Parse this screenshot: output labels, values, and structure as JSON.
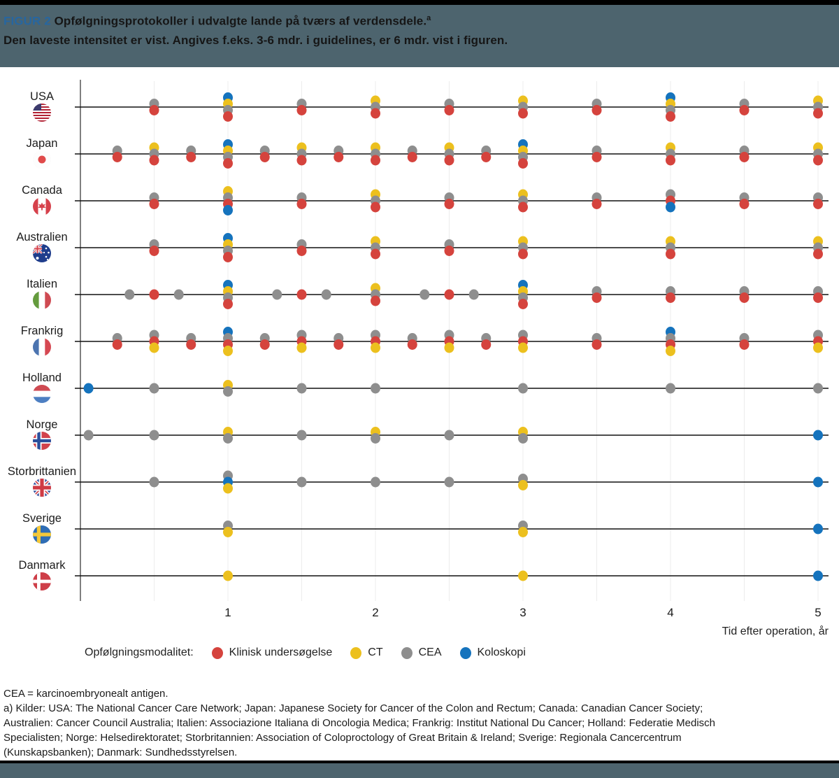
{
  "header": {
    "tag": "FIGUR 2",
    "title": "Opfølgningsprotokoller i udvalgte lande på tværs af verdensdele.",
    "title_sup": "a",
    "subtitle": "Den laveste intensitet er vist. Angives f.eks. 3-6 mdr. i guidelines, er 6 mdr. vist i figuren."
  },
  "colors": {
    "header_bg": "#4d646e",
    "tag_blue": "#2766a0",
    "klinisk": "#d5433d",
    "ct": "#ecc01e",
    "cea": "#8e8e8e",
    "koloskopi": "#1573bd",
    "row_line": "#101010",
    "grid_line": "#ececec"
  },
  "chart_data": {
    "type": "scatter",
    "xlabel": "Tid efter operation, år",
    "x_ticks": [
      1,
      2,
      3,
      4,
      5
    ],
    "x_range": [
      0,
      5.1
    ],
    "grid": "vertical, every 0.5 year",
    "legend_position": "bottom",
    "legend_title": "Opfølgningsmodalitet:",
    "legend": [
      {
        "label": "Klinisk undersøgelse",
        "color_key": "klinisk"
      },
      {
        "label": "CT",
        "color_key": "ct"
      },
      {
        "label": "CEA",
        "color_key": "cea"
      },
      {
        "label": "Koloskopi",
        "color_key": "koloskopi"
      }
    ],
    "rows": [
      {
        "country": "USA",
        "flag_icon": "usa-flag-icon",
        "points": [
          {
            "x": 0.5,
            "stack": [
              "cea",
              "klinisk"
            ]
          },
          {
            "x": 1,
            "stack": [
              "koloskopi",
              "ct",
              "cea",
              "klinisk"
            ]
          },
          {
            "x": 1.5,
            "stack": [
              "cea",
              "klinisk"
            ]
          },
          {
            "x": 2,
            "stack": [
              "ct",
              "cea",
              "klinisk"
            ]
          },
          {
            "x": 2.5,
            "stack": [
              "cea",
              "klinisk"
            ]
          },
          {
            "x": 3,
            "stack": [
              "ct",
              "cea",
              "klinisk"
            ]
          },
          {
            "x": 3.5,
            "stack": [
              "cea",
              "klinisk"
            ]
          },
          {
            "x": 4,
            "stack": [
              "koloskopi",
              "ct",
              "cea",
              "klinisk"
            ]
          },
          {
            "x": 4.5,
            "stack": [
              "cea",
              "klinisk"
            ]
          },
          {
            "x": 5,
            "stack": [
              "ct",
              "cea",
              "klinisk"
            ]
          }
        ]
      },
      {
        "country": "Japan",
        "flag_icon": "japan-flag-icon",
        "points": [
          {
            "x": 0.25,
            "stack": [
              "cea",
              "klinisk"
            ]
          },
          {
            "x": 0.5,
            "stack": [
              "ct",
              "cea",
              "klinisk"
            ]
          },
          {
            "x": 0.75,
            "stack": [
              "cea",
              "klinisk"
            ]
          },
          {
            "x": 1,
            "stack": [
              "koloskopi",
              "ct",
              "cea",
              "klinisk"
            ]
          },
          {
            "x": 1.25,
            "stack": [
              "cea",
              "klinisk"
            ]
          },
          {
            "x": 1.5,
            "stack": [
              "ct",
              "cea",
              "klinisk"
            ]
          },
          {
            "x": 1.75,
            "stack": [
              "cea",
              "klinisk"
            ]
          },
          {
            "x": 2,
            "stack": [
              "ct",
              "cea",
              "klinisk"
            ]
          },
          {
            "x": 2.25,
            "stack": [
              "cea",
              "klinisk"
            ]
          },
          {
            "x": 2.5,
            "stack": [
              "ct",
              "cea",
              "klinisk"
            ]
          },
          {
            "x": 2.75,
            "stack": [
              "cea",
              "klinisk"
            ]
          },
          {
            "x": 3,
            "stack": [
              "koloskopi",
              "ct",
              "cea",
              "klinisk"
            ]
          },
          {
            "x": 3.5,
            "stack": [
              "cea",
              "klinisk"
            ]
          },
          {
            "x": 4,
            "stack": [
              "ct",
              "cea",
              "klinisk"
            ]
          },
          {
            "x": 4.5,
            "stack": [
              "cea",
              "klinisk"
            ]
          },
          {
            "x": 5,
            "stack": [
              "ct",
              "cea",
              "klinisk"
            ]
          }
        ]
      },
      {
        "country": "Canada",
        "flag_icon": "canada-flag-icon",
        "points": [
          {
            "x": 0.5,
            "stack": [
              "cea",
              "klinisk"
            ]
          },
          {
            "x": 1,
            "stack": [
              "ct",
              "cea",
              "klinisk",
              "koloskopi"
            ]
          },
          {
            "x": 1.5,
            "stack": [
              "cea",
              "klinisk"
            ]
          },
          {
            "x": 2,
            "stack": [
              "ct",
              "cea",
              "klinisk"
            ]
          },
          {
            "x": 2.5,
            "stack": [
              "cea",
              "klinisk"
            ]
          },
          {
            "x": 3,
            "stack": [
              "ct",
              "cea",
              "klinisk"
            ]
          },
          {
            "x": 3.5,
            "stack": [
              "cea",
              "klinisk"
            ]
          },
          {
            "x": 4,
            "stack": [
              "cea",
              "klinisk",
              "koloskopi"
            ]
          },
          {
            "x": 4.5,
            "stack": [
              "cea",
              "klinisk"
            ]
          },
          {
            "x": 5,
            "stack": [
              "cea",
              "klinisk"
            ]
          }
        ]
      },
      {
        "country": "Australien",
        "flag_icon": "australia-flag-icon",
        "points": [
          {
            "x": 0.5,
            "stack": [
              "cea",
              "klinisk"
            ]
          },
          {
            "x": 1,
            "stack": [
              "koloskopi",
              "ct",
              "cea",
              "klinisk"
            ]
          },
          {
            "x": 1.5,
            "stack": [
              "cea",
              "klinisk"
            ]
          },
          {
            "x": 2,
            "stack": [
              "ct",
              "cea",
              "klinisk"
            ]
          },
          {
            "x": 2.5,
            "stack": [
              "cea",
              "klinisk"
            ]
          },
          {
            "x": 3,
            "stack": [
              "ct",
              "cea",
              "klinisk"
            ]
          },
          {
            "x": 4,
            "stack": [
              "ct",
              "cea",
              "klinisk"
            ]
          },
          {
            "x": 5,
            "stack": [
              "ct",
              "cea",
              "klinisk"
            ]
          }
        ]
      },
      {
        "country": "Italien",
        "flag_icon": "italy-flag-icon",
        "points": [
          {
            "x": 0.333,
            "stack": [
              "cea"
            ]
          },
          {
            "x": 0.5,
            "stack": [
              "klinisk"
            ]
          },
          {
            "x": 0.667,
            "stack": [
              "cea"
            ]
          },
          {
            "x": 1,
            "stack": [
              "koloskopi",
              "ct",
              "cea",
              "klinisk"
            ]
          },
          {
            "x": 1.333,
            "stack": [
              "cea"
            ]
          },
          {
            "x": 1.5,
            "stack": [
              "klinisk"
            ]
          },
          {
            "x": 1.667,
            "stack": [
              "cea"
            ]
          },
          {
            "x": 2,
            "stack": [
              "ct",
              "cea",
              "klinisk"
            ]
          },
          {
            "x": 2.333,
            "stack": [
              "cea"
            ]
          },
          {
            "x": 2.5,
            "stack": [
              "klinisk"
            ]
          },
          {
            "x": 2.667,
            "stack": [
              "cea"
            ]
          },
          {
            "x": 3,
            "stack": [
              "koloskopi",
              "ct",
              "cea",
              "klinisk"
            ]
          },
          {
            "x": 3.5,
            "stack": [
              "cea",
              "klinisk"
            ]
          },
          {
            "x": 4,
            "stack": [
              "cea",
              "klinisk"
            ]
          },
          {
            "x": 4.5,
            "stack": [
              "cea",
              "klinisk"
            ]
          },
          {
            "x": 5,
            "stack": [
              "cea",
              "klinisk"
            ]
          }
        ]
      },
      {
        "country": "Frankrig",
        "flag_icon": "france-flag-icon",
        "points": [
          {
            "x": 0.25,
            "stack": [
              "cea",
              "klinisk"
            ]
          },
          {
            "x": 0.5,
            "stack": [
              "cea",
              "klinisk",
              "ct"
            ]
          },
          {
            "x": 0.75,
            "stack": [
              "cea",
              "klinisk"
            ]
          },
          {
            "x": 1,
            "stack": [
              "koloskopi",
              "cea",
              "klinisk",
              "ct"
            ]
          },
          {
            "x": 1.25,
            "stack": [
              "cea",
              "klinisk"
            ]
          },
          {
            "x": 1.5,
            "stack": [
              "cea",
              "klinisk",
              "ct"
            ]
          },
          {
            "x": 1.75,
            "stack": [
              "cea",
              "klinisk"
            ]
          },
          {
            "x": 2,
            "stack": [
              "cea",
              "klinisk",
              "ct"
            ]
          },
          {
            "x": 2.25,
            "stack": [
              "cea",
              "klinisk"
            ]
          },
          {
            "x": 2.5,
            "stack": [
              "cea",
              "klinisk",
              "ct"
            ]
          },
          {
            "x": 2.75,
            "stack": [
              "cea",
              "klinisk"
            ]
          },
          {
            "x": 3,
            "stack": [
              "cea",
              "klinisk",
              "ct"
            ]
          },
          {
            "x": 3.5,
            "stack": [
              "cea",
              "klinisk"
            ]
          },
          {
            "x": 4,
            "stack": [
              "koloskopi",
              "cea",
              "klinisk",
              "ct"
            ]
          },
          {
            "x": 4.5,
            "stack": [
              "cea",
              "klinisk"
            ]
          },
          {
            "x": 5,
            "stack": [
              "cea",
              "klinisk",
              "ct"
            ]
          }
        ]
      },
      {
        "country": "Holland",
        "flag_icon": "netherlands-flag-icon",
        "points": [
          {
            "x": 0.055,
            "stack": [
              "koloskopi"
            ]
          },
          {
            "x": 0.5,
            "stack": [
              "cea"
            ]
          },
          {
            "x": 1,
            "stack": [
              "ct",
              "cea"
            ]
          },
          {
            "x": 1.5,
            "stack": [
              "cea"
            ]
          },
          {
            "x": 2,
            "stack": [
              "cea"
            ]
          },
          {
            "x": 3,
            "stack": [
              "cea"
            ]
          },
          {
            "x": 4,
            "stack": [
              "cea"
            ]
          },
          {
            "x": 5,
            "stack": [
              "cea"
            ]
          }
        ]
      },
      {
        "country": "Norge",
        "flag_icon": "norway-flag-icon",
        "points": [
          {
            "x": 0.055,
            "stack": [
              "cea"
            ]
          },
          {
            "x": 0.5,
            "stack": [
              "cea"
            ]
          },
          {
            "x": 1,
            "stack": [
              "ct",
              "cea"
            ]
          },
          {
            "x": 1.5,
            "stack": [
              "cea"
            ]
          },
          {
            "x": 2,
            "stack": [
              "ct",
              "cea"
            ]
          },
          {
            "x": 2.5,
            "stack": [
              "cea"
            ]
          },
          {
            "x": 3,
            "stack": [
              "ct",
              "cea"
            ]
          },
          {
            "x": 5,
            "stack": [
              "koloskopi"
            ]
          }
        ]
      },
      {
        "country": "Storbrittanien",
        "flag_icon": "uk-flag-icon",
        "points": [
          {
            "x": 0.5,
            "stack": [
              "cea"
            ]
          },
          {
            "x": 1,
            "stack": [
              "cea",
              "koloskopi",
              "ct"
            ]
          },
          {
            "x": 1.5,
            "stack": [
              "cea"
            ]
          },
          {
            "x": 2,
            "stack": [
              "cea"
            ]
          },
          {
            "x": 2.5,
            "stack": [
              "cea"
            ]
          },
          {
            "x": 3,
            "stack": [
              "cea",
              "ct"
            ]
          },
          {
            "x": 5,
            "stack": [
              "koloskopi"
            ]
          }
        ]
      },
      {
        "country": "Sverige",
        "flag_icon": "sweden-flag-icon",
        "points": [
          {
            "x": 1,
            "stack": [
              "cea",
              "ct"
            ]
          },
          {
            "x": 3,
            "stack": [
              "cea",
              "ct"
            ]
          },
          {
            "x": 5,
            "stack": [
              "koloskopi"
            ]
          }
        ]
      },
      {
        "country": "Danmark",
        "flag_icon": "denmark-flag-icon",
        "points": [
          {
            "x": 1,
            "stack": [
              "ct"
            ]
          },
          {
            "x": 3,
            "stack": [
              "ct"
            ]
          },
          {
            "x": 5,
            "stack": [
              "koloskopi"
            ]
          }
        ]
      }
    ]
  },
  "footer": {
    "lines": [
      "CEA = karcinoembryonealt antigen.",
      "a) Kilder: USA: The National Cancer Care Network; Japan: Japanese Society for Cancer of the Colon and Rectum; Canada: Canadian Cancer Society;",
      "Australien: Cancer Council Australia; Italien: Associazione Italiana di Oncologia Medica; Frankrig: Institut National Du Cancer; Holland: Federatie Medisch",
      "Specialisten; Norge: Helsedirektoratet; Storbritannien: Association of Coloproctology of Great Britain & Ireland; Sverige: Regionala Cancercentrum",
      "(Kunskapsbanken); Danmark: Sundhedsstyrelsen."
    ]
  }
}
